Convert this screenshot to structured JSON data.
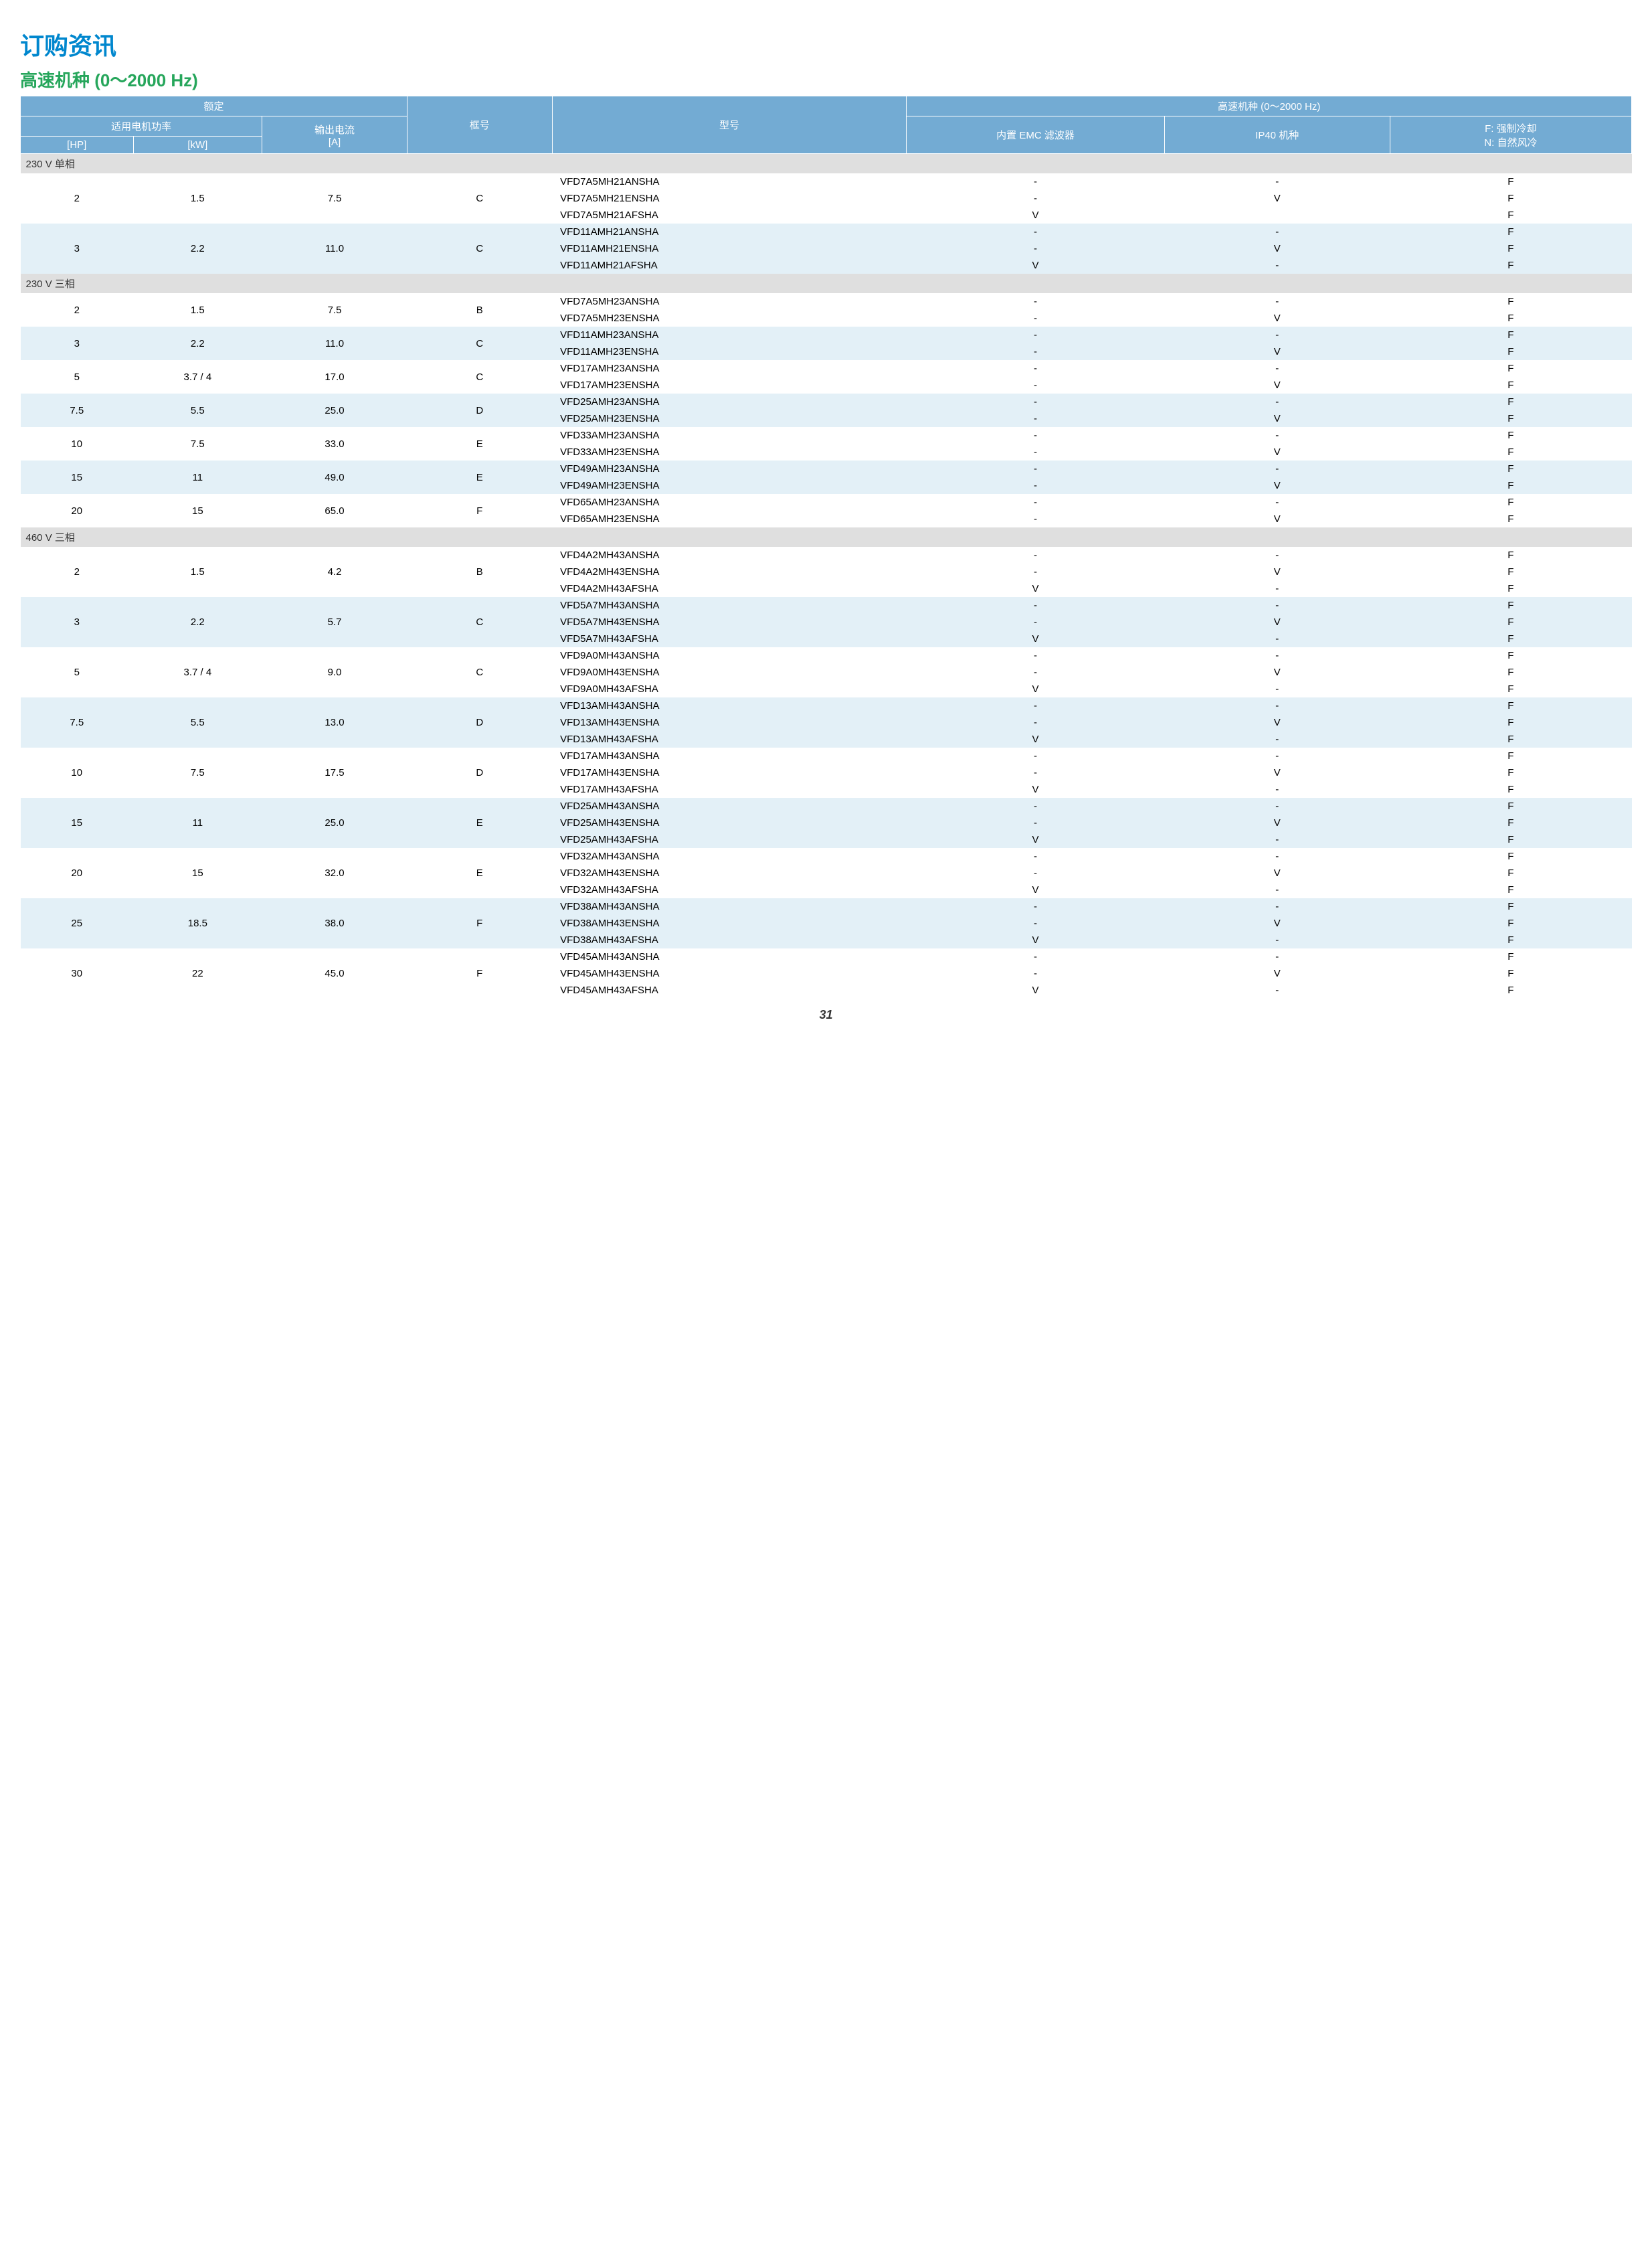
{
  "colors": {
    "title": "#0087ce",
    "subtitle": "#26a65b",
    "header_bg": "#73abd3",
    "header_fg": "#ffffff",
    "section_bg": "#dfdfdf",
    "tint_bg": "#e3f0f7",
    "white_bg": "#ffffff"
  },
  "fonts": {
    "title_size": 36,
    "subtitle_size": 26,
    "cell_size": 15
  },
  "title": "订购资讯",
  "subtitle": "高速机种 (0～2000 Hz)",
  "page_number": "31",
  "header": {
    "rated": "额定",
    "frame": "框号",
    "model": "型号",
    "highspeed": "高速机种 (0～2000 Hz)",
    "motor_power": "适用电机功率",
    "output_current": "输出电流\n[A]",
    "hp": "[HP]",
    "kw": "[kW]",
    "emc": "内置 EMC 滤波器",
    "ip40": "IP40 机种",
    "cooling": "F: 强制冷却\nN: 自然风冷"
  },
  "sections": [
    {
      "label": "230 V 单相",
      "groups": [
        {
          "shade": "white",
          "hp": "2",
          "kw": "1.5",
          "amp": "7.5",
          "frame": "C",
          "rows": [
            {
              "model": "VFD7A5MH21ANSHA",
              "emc": "-",
              "ip40": "-",
              "cool": "F"
            },
            {
              "model": "VFD7A5MH21ENSHA",
              "emc": "-",
              "ip40": "V",
              "cool": "F"
            },
            {
              "model": "VFD7A5MH21AFSHA",
              "emc": "V",
              "ip40": "",
              "cool": "F"
            }
          ]
        },
        {
          "shade": "tint",
          "hp": "3",
          "kw": "2.2",
          "amp": "11.0",
          "frame": "C",
          "rows": [
            {
              "model": "VFD11AMH21ANSHA",
              "emc": "-",
              "ip40": "-",
              "cool": "F"
            },
            {
              "model": "VFD11AMH21ENSHA",
              "emc": "-",
              "ip40": "V",
              "cool": "F"
            },
            {
              "model": "VFD11AMH21AFSHA",
              "emc": "V",
              "ip40": "-",
              "cool": "F"
            }
          ]
        }
      ]
    },
    {
      "label": "230 V 三相",
      "groups": [
        {
          "shade": "white",
          "hp": "2",
          "kw": "1.5",
          "amp": "7.5",
          "frame": "B",
          "rows": [
            {
              "model": "VFD7A5MH23ANSHA",
              "emc": "-",
              "ip40": "-",
              "cool": "F"
            },
            {
              "model": "VFD7A5MH23ENSHA",
              "emc": "-",
              "ip40": "V",
              "cool": "F"
            }
          ]
        },
        {
          "shade": "tint",
          "hp": "3",
          "kw": "2.2",
          "amp": "11.0",
          "frame": "C",
          "rows": [
            {
              "model": "VFD11AMH23ANSHA",
              "emc": "-",
              "ip40": "-",
              "cool": "F"
            },
            {
              "model": "VFD11AMH23ENSHA",
              "emc": "-",
              "ip40": "V",
              "cool": "F"
            }
          ]
        },
        {
          "shade": "white",
          "hp": "5",
          "kw": "3.7 / 4",
          "amp": "17.0",
          "frame": "C",
          "rows": [
            {
              "model": "VFD17AMH23ANSHA",
              "emc": "-",
              "ip40": "-",
              "cool": "F"
            },
            {
              "model": "VFD17AMH23ENSHA",
              "emc": "-",
              "ip40": "V",
              "cool": "F"
            }
          ]
        },
        {
          "shade": "tint",
          "hp": "7.5",
          "kw": "5.5",
          "amp": "25.0",
          "frame": "D",
          "rows": [
            {
              "model": "VFD25AMH23ANSHA",
              "emc": "-",
              "ip40": "-",
              "cool": "F"
            },
            {
              "model": "VFD25AMH23ENSHA",
              "emc": "-",
              "ip40": "V",
              "cool": "F"
            }
          ]
        },
        {
          "shade": "white",
          "hp": "10",
          "kw": "7.5",
          "amp": "33.0",
          "frame": "E",
          "rows": [
            {
              "model": "VFD33AMH23ANSHA",
              "emc": "-",
              "ip40": "-",
              "cool": "F"
            },
            {
              "model": "VFD33AMH23ENSHA",
              "emc": "-",
              "ip40": "V",
              "cool": "F"
            }
          ]
        },
        {
          "shade": "tint",
          "hp": "15",
          "kw": "11",
          "amp": "49.0",
          "frame": "E",
          "rows": [
            {
              "model": "VFD49AMH23ANSHA",
              "emc": "-",
              "ip40": "-",
              "cool": "F"
            },
            {
              "model": "VFD49AMH23ENSHA",
              "emc": "-",
              "ip40": "V",
              "cool": "F"
            }
          ]
        },
        {
          "shade": "white",
          "hp": "20",
          "kw": "15",
          "amp": "65.0",
          "frame": "F",
          "rows": [
            {
              "model": "VFD65AMH23ANSHA",
              "emc": "-",
              "ip40": "-",
              "cool": "F"
            },
            {
              "model": "VFD65AMH23ENSHA",
              "emc": "-",
              "ip40": "V",
              "cool": "F"
            }
          ]
        }
      ]
    },
    {
      "label": "460 V 三相",
      "groups": [
        {
          "shade": "white",
          "hp": "2",
          "kw": "1.5",
          "amp": "4.2",
          "frame": "B",
          "rows": [
            {
              "model": "VFD4A2MH43ANSHA",
              "emc": "-",
              "ip40": "-",
              "cool": "F"
            },
            {
              "model": "VFD4A2MH43ENSHA",
              "emc": "-",
              "ip40": "V",
              "cool": "F"
            },
            {
              "model": "VFD4A2MH43AFSHA",
              "emc": "V",
              "ip40": "-",
              "cool": "F"
            }
          ]
        },
        {
          "shade": "tint",
          "hp": "3",
          "kw": "2.2",
          "amp": "5.7",
          "frame": "C",
          "rows": [
            {
              "model": "VFD5A7MH43ANSHA",
              "emc": "-",
              "ip40": "-",
              "cool": "F"
            },
            {
              "model": "VFD5A7MH43ENSHA",
              "emc": "-",
              "ip40": "V",
              "cool": "F"
            },
            {
              "model": "VFD5A7MH43AFSHA",
              "emc": "V",
              "ip40": "-",
              "cool": "F"
            }
          ]
        },
        {
          "shade": "white",
          "hp": "5",
          "kw": "3.7 / 4",
          "amp": "9.0",
          "frame": "C",
          "rows": [
            {
              "model": "VFD9A0MH43ANSHA",
              "emc": "-",
              "ip40": "-",
              "cool": "F"
            },
            {
              "model": "VFD9A0MH43ENSHA",
              "emc": "-",
              "ip40": "V",
              "cool": "F"
            },
            {
              "model": "VFD9A0MH43AFSHA",
              "emc": "V",
              "ip40": "-",
              "cool": "F"
            }
          ]
        },
        {
          "shade": "tint",
          "hp": "7.5",
          "kw": "5.5",
          "amp": "13.0",
          "frame": "D",
          "rows": [
            {
              "model": "VFD13AMH43ANSHA",
              "emc": "-",
              "ip40": "-",
              "cool": "F"
            },
            {
              "model": "VFD13AMH43ENSHA",
              "emc": "-",
              "ip40": "V",
              "cool": "F"
            },
            {
              "model": "VFD13AMH43AFSHA",
              "emc": "V",
              "ip40": "-",
              "cool": "F"
            }
          ]
        },
        {
          "shade": "white",
          "hp": "10",
          "kw": "7.5",
          "amp": "17.5",
          "frame": "D",
          "rows": [
            {
              "model": "VFD17AMH43ANSHA",
              "emc": "-",
              "ip40": "-",
              "cool": "F"
            },
            {
              "model": "VFD17AMH43ENSHA",
              "emc": "-",
              "ip40": "V",
              "cool": "F"
            },
            {
              "model": "VFD17AMH43AFSHA",
              "emc": "V",
              "ip40": "-",
              "cool": "F"
            }
          ]
        },
        {
          "shade": "tint",
          "hp": "15",
          "kw": "11",
          "amp": "25.0",
          "frame": "E",
          "rows": [
            {
              "model": "VFD25AMH43ANSHA",
              "emc": "-",
              "ip40": "-",
              "cool": "F"
            },
            {
              "model": "VFD25AMH43ENSHA",
              "emc": "-",
              "ip40": "V",
              "cool": "F"
            },
            {
              "model": "VFD25AMH43AFSHA",
              "emc": "V",
              "ip40": "-",
              "cool": "F"
            }
          ]
        },
        {
          "shade": "white",
          "hp": "20",
          "kw": "15",
          "amp": "32.0",
          "frame": "E",
          "rows": [
            {
              "model": "VFD32AMH43ANSHA",
              "emc": "-",
              "ip40": "-",
              "cool": "F"
            },
            {
              "model": "VFD32AMH43ENSHA",
              "emc": "-",
              "ip40": "V",
              "cool": "F"
            },
            {
              "model": "VFD32AMH43AFSHA",
              "emc": "V",
              "ip40": "-",
              "cool": "F"
            }
          ]
        },
        {
          "shade": "tint",
          "hp": "25",
          "kw": "18.5",
          "amp": "38.0",
          "frame": "F",
          "rows": [
            {
              "model": "VFD38AMH43ANSHA",
              "emc": "-",
              "ip40": "-",
              "cool": "F"
            },
            {
              "model": "VFD38AMH43ENSHA",
              "emc": "-",
              "ip40": "V",
              "cool": "F"
            },
            {
              "model": "VFD38AMH43AFSHA",
              "emc": "V",
              "ip40": "-",
              "cool": "F"
            }
          ]
        },
        {
          "shade": "white",
          "hp": "30",
          "kw": "22",
          "amp": "45.0",
          "frame": "F",
          "rows": [
            {
              "model": "VFD45AMH43ANSHA",
              "emc": "-",
              "ip40": "-",
              "cool": "F"
            },
            {
              "model": "VFD45AMH43ENSHA",
              "emc": "-",
              "ip40": "V",
              "cool": "F"
            },
            {
              "model": "VFD45AMH43AFSHA",
              "emc": "V",
              "ip40": "-",
              "cool": "F"
            }
          ]
        }
      ]
    }
  ]
}
